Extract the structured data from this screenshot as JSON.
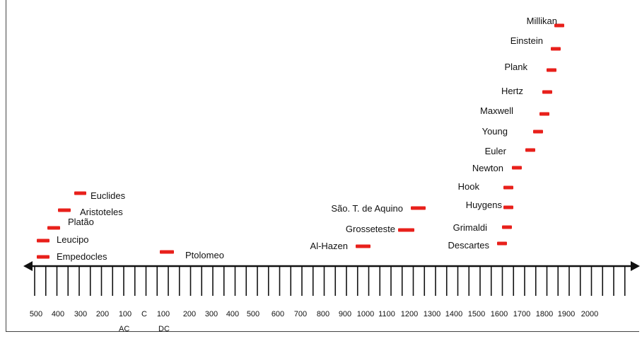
{
  "colors": {
    "marker": "#e8201b",
    "axis": "#111111"
  },
  "scientists": [
    {
      "name": "Millikan"
    },
    {
      "name": "Einstein"
    },
    {
      "name": "Plank"
    },
    {
      "name": "Hertz"
    },
    {
      "name": "Maxwell"
    },
    {
      "name": "Young"
    },
    {
      "name": "Euler"
    },
    {
      "name": "Newton"
    },
    {
      "name": "Hook"
    },
    {
      "name": "Huygens"
    },
    {
      "name": "Grimaldi"
    },
    {
      "name": "Descartes"
    },
    {
      "name": "São. T. de Aquino"
    },
    {
      "name": "Grosseteste"
    },
    {
      "name": "Al-Hazen"
    },
    {
      "name": "Ptolomeo"
    },
    {
      "name": "Euclides"
    },
    {
      "name": "Aristoteles"
    },
    {
      "name": "Platão"
    },
    {
      "name": "Leucipo"
    },
    {
      "name": "Empedocles"
    }
  ],
  "axis_labels": [
    "500",
    "400",
    "300",
    "200",
    "100",
    "C",
    "100",
    "200",
    "300",
    "400",
    "500",
    "600",
    "700",
    "800",
    "900",
    "1000",
    "1100",
    "1200",
    "1300",
    "1400",
    "1500",
    "1600",
    "1700",
    "1800",
    "1900",
    "2000"
  ],
  "era_labels": {
    "bc": "AC",
    "ad": "DC"
  }
}
